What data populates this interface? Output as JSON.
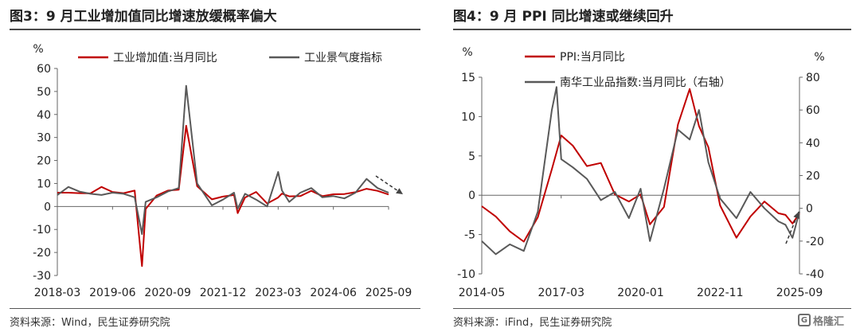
{
  "watermark": {
    "text": "格隆汇"
  },
  "chart_data": [
    {
      "type": "line",
      "title": "图3：9 月工业增加值同比增速放缓概率偏大",
      "source": "资料来源：Wind，民生证券研究院",
      "ylabel": "%",
      "ylim": [
        -30,
        60
      ],
      "yticks": [
        60,
        50,
        40,
        30,
        20,
        10,
        0,
        -10,
        -20,
        -30
      ],
      "xlim": [
        "2018-03",
        "2025-09"
      ],
      "xticks": [
        "2018-03",
        "2019-06",
        "2020-09",
        "2021-12",
        "2023-03",
        "2024-06",
        "2025-09"
      ],
      "legend": "top",
      "colors": {
        "industrial": "#c00000",
        "sentiment": "#595959"
      },
      "series": [
        {
          "name": "工业增加值:当月同比",
          "x": [
            "2018-03",
            "2018-06",
            "2018-09",
            "2018-12",
            "2019-03",
            "2019-06",
            "2019-09",
            "2019-12",
            "2020-02",
            "2020-03",
            "2020-06",
            "2020-09",
            "2020-12",
            "2021-02",
            "2021-05",
            "2021-09",
            "2021-12",
            "2022-03",
            "2022-04",
            "2022-06",
            "2022-09",
            "2022-12",
            "2023-03",
            "2023-04",
            "2023-06",
            "2023-09",
            "2023-12",
            "2024-03",
            "2024-06",
            "2024-09",
            "2024-12",
            "2025-03",
            "2025-06",
            "2025-09"
          ],
          "y": [
            6.0,
            6.0,
            5.8,
            5.7,
            8.5,
            6.3,
            5.8,
            6.9,
            -25.9,
            -1.1,
            4.8,
            6.9,
            7.3,
            35.1,
            8.8,
            3.1,
            4.3,
            5.0,
            -2.9,
            3.9,
            6.3,
            1.3,
            3.9,
            5.6,
            4.4,
            4.5,
            6.8,
            4.5,
            5.3,
            5.4,
            6.2,
            7.7,
            6.8,
            5.2
          ]
        },
        {
          "name": "工业景气度指标",
          "x": [
            "2018-03",
            "2018-06",
            "2018-09",
            "2018-12",
            "2019-03",
            "2019-06",
            "2019-09",
            "2019-12",
            "2020-02",
            "2020-03",
            "2020-06",
            "2020-09",
            "2020-12",
            "2021-02",
            "2021-05",
            "2021-09",
            "2021-12",
            "2022-03",
            "2022-04",
            "2022-06",
            "2022-09",
            "2022-12",
            "2023-03",
            "2023-04",
            "2023-06",
            "2023-09",
            "2023-12",
            "2024-03",
            "2024-06",
            "2024-09",
            "2024-12",
            "2025-03",
            "2025-06",
            "2025-09"
          ],
          "y": [
            5.0,
            8.5,
            6.5,
            5.5,
            5.0,
            6.0,
            5.5,
            4.0,
            -12.0,
            2.0,
            4.0,
            6.5,
            8.0,
            52.5,
            10.0,
            0.5,
            3.0,
            6.0,
            -1.0,
            5.5,
            3.0,
            0.0,
            15.0,
            7.0,
            2.0,
            6.0,
            8.0,
            4.0,
            4.5,
            3.5,
            6.0,
            12.0,
            8.0,
            6.0
          ]
        }
      ]
    },
    {
      "type": "line",
      "title": "图4：9 月 PPI 同比增速或继续回升",
      "source": "资料来源：iFind，民生证券研究院",
      "ylabel": "%",
      "y2label": "%",
      "ylim": [
        -10,
        15
      ],
      "yticks": [
        15,
        10,
        5,
        0,
        -5,
        -10
      ],
      "y2lim": [
        -40,
        80
      ],
      "y2ticks": [
        80,
        60,
        40,
        20,
        0,
        -20,
        -40
      ],
      "xlim": [
        "2014-05",
        "2025-09"
      ],
      "xticks": [
        "2014-05",
        "2017-03",
        "2020-01",
        "2022-11",
        "2025-09"
      ],
      "legend": "top",
      "colors": {
        "ppi": "#c00000",
        "nanhua": "#595959"
      },
      "series": [
        {
          "name": "PPI:当月同比",
          "axis": "left",
          "x": [
            "2014-05",
            "2014-11",
            "2015-05",
            "2015-11",
            "2016-05",
            "2016-11",
            "2017-03",
            "2017-08",
            "2018-02",
            "2018-08",
            "2019-02",
            "2019-08",
            "2020-01",
            "2020-05",
            "2020-11",
            "2021-05",
            "2021-10",
            "2022-02",
            "2022-06",
            "2022-11",
            "2023-06",
            "2023-12",
            "2024-06",
            "2024-12",
            "2025-03",
            "2025-06",
            "2025-09"
          ],
          "y": [
            -1.4,
            -2.7,
            -4.6,
            -5.9,
            -2.8,
            3.3,
            7.6,
            6.3,
            3.7,
            4.1,
            0.1,
            -0.8,
            0.1,
            -3.7,
            -1.5,
            9.0,
            13.5,
            8.8,
            6.1,
            -1.3,
            -5.4,
            -2.7,
            -0.8,
            -2.3,
            -2.5,
            -3.6,
            -2.3
          ]
        },
        {
          "name": "南华工业品指数:当月同比（右轴）",
          "axis": "right",
          "x": [
            "2014-05",
            "2014-11",
            "2015-05",
            "2015-11",
            "2016-05",
            "2016-11",
            "2017-01",
            "2017-03",
            "2017-08",
            "2018-02",
            "2018-08",
            "2019-02",
            "2019-08",
            "2020-01",
            "2020-05",
            "2020-11",
            "2021-05",
            "2021-10",
            "2022-02",
            "2022-06",
            "2022-11",
            "2023-06",
            "2023-12",
            "2024-06",
            "2024-12",
            "2025-03",
            "2025-06",
            "2025-09"
          ],
          "y": [
            -20,
            -28,
            -22,
            -26,
            -2,
            60,
            74,
            30,
            25,
            18,
            5,
            10,
            -6,
            12,
            -20,
            12,
            48,
            42,
            60,
            28,
            6,
            -6,
            10,
            0,
            -8,
            -10,
            -18,
            -2
          ]
        }
      ]
    }
  ]
}
